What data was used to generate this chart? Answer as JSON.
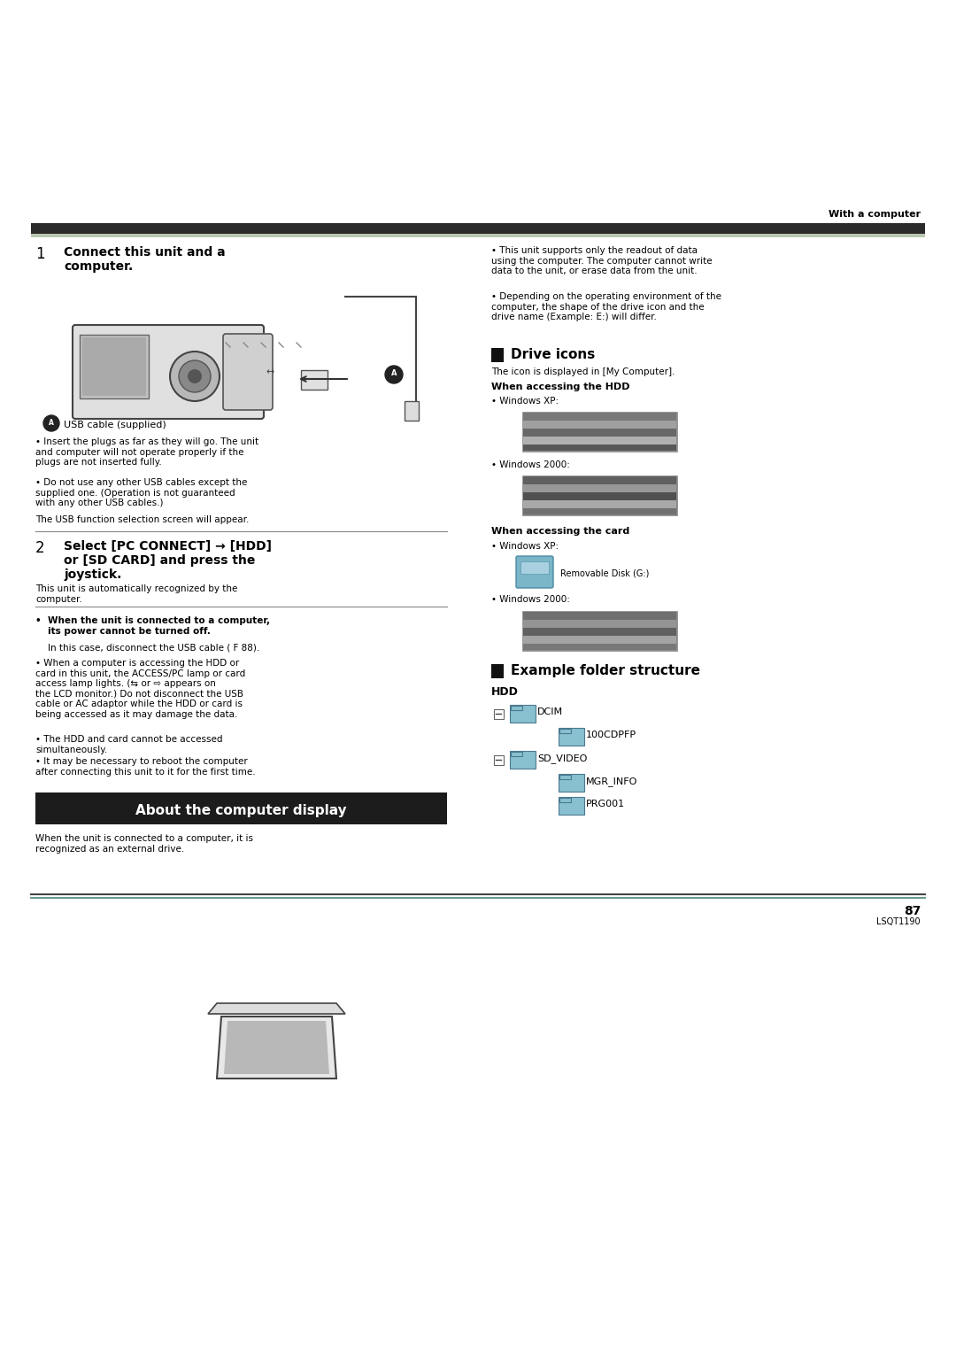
{
  "page_width": 10.8,
  "page_height": 15.28,
  "bg_color": "#ffffff",
  "header_text": "With a computer",
  "step1_title_num": "1",
  "step1_title": "Connect this unit and a\ncomputer.",
  "step1_label_a": "USB cable (supplied)",
  "step1_bullet1": "Insert the plugs as far as they will go. The unit\nand computer will not operate properly if the\nplugs are not inserted fully.",
  "step1_bullet2": "Do not use any other USB cables except the\nsupplied one. (Operation is not guaranteed\nwith any other USB cables.)",
  "step1_note": "The USB function selection screen will appear.",
  "step2_title_num": "2",
  "step2_title": "Select [PC CONNECT] → [HDD]\nor [SD CARD] and press the\njoystick.",
  "step2_note": "This unit is automatically recognized by the\ncomputer.",
  "step2_bullet1_bold": "When the unit is connected to a computer,\nits power cannot be turned off.",
  "step2_bullet1_normal": "In this case, disconnect the USB cable ( F 88).",
  "step2_bullet2": "When a computer is accessing the HDD or\ncard in this unit, the ACCESS/PC lamp or card\naccess lamp lights. (⇆ or ⇨ appears on\nthe LCD monitor.) Do not disconnect the USB\ncable or AC adaptor while the HDD or card is\nbeing accessed as it may damage the data.",
  "step2_bullet3": "The HDD and card cannot be accessed\nsimultaneously.",
  "step2_bullet4": "It may be necessary to reboot the computer\nafter connecting this unit to it for the first time.",
  "about_title": "About the computer display",
  "about_text": "When the unit is connected to a computer, it is\nrecognized as an external drive.",
  "right_bullet1": "This unit supports only the readout of data\nusing the computer. The computer cannot write\ndata to the unit, or erase data from the unit.",
  "right_bullet2": "Depending on the operating environment of the\ncomputer, the shape of the drive icon and the\ndrive name (Example: E:) will differ.",
  "drive_icons_title": "Drive icons",
  "drive_icons_note": "The icon is displayed in [My Computer].",
  "hdd_access_title": "When accessing the HDD",
  "hdd_winxp": "• Windows XP:",
  "hdd_win2000": "• Windows 2000:",
  "card_access_title": "When accessing the card",
  "card_winxp": "• Windows XP:",
  "card_winxp_label": "Removable Disk (G:)",
  "card_win2000": "• Windows 2000:",
  "folder_title": "Example folder structure",
  "folder_hdd": "HDD",
  "folder_items": [
    {
      "label": "DCIM",
      "level": 1,
      "has_minus": true
    },
    {
      "label": "100CDPFP",
      "level": 2,
      "has_minus": false
    },
    {
      "label": "SD_VIDEO",
      "level": 1,
      "has_minus": true
    },
    {
      "label": "MGR_INFO",
      "level": 2,
      "has_minus": false
    },
    {
      "label": "PRG001",
      "level": 2,
      "has_minus": false
    }
  ],
  "page_number": "87",
  "page_code": "LSQT1190"
}
